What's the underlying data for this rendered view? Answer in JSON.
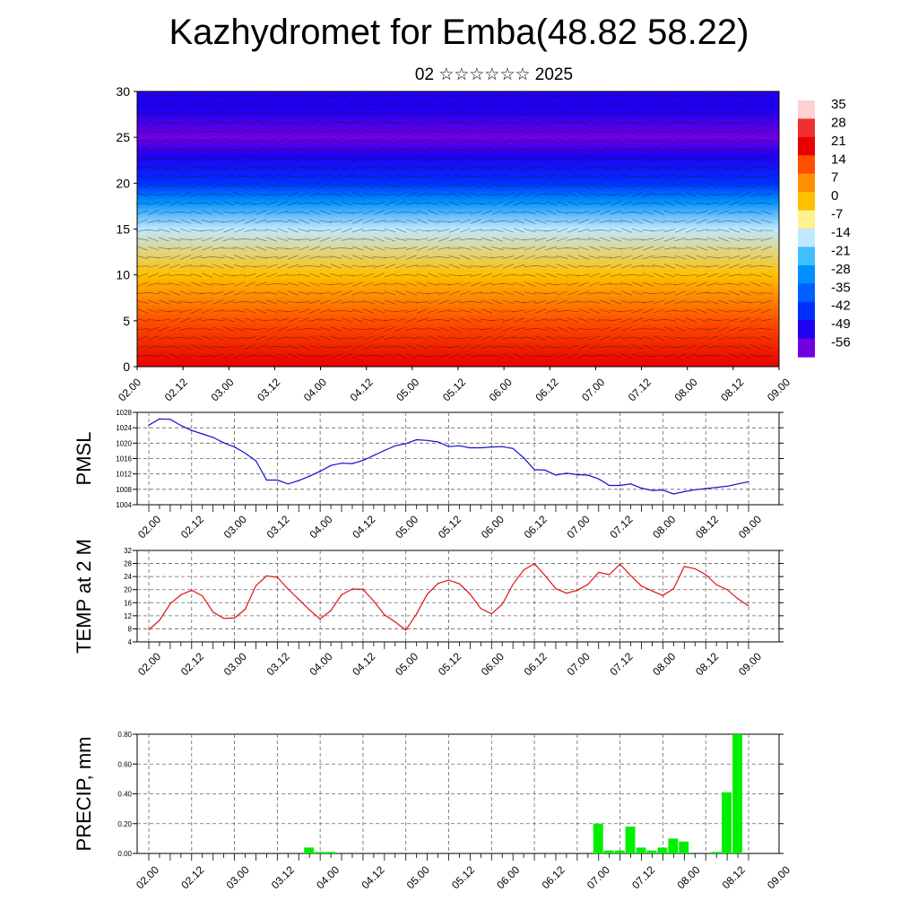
{
  "header": {
    "title": "Kazhydromet for Emba(48.82 58.22)",
    "subtitle": "02 ☆☆☆☆☆☆ 2025"
  },
  "x_tick_labels": [
    "02.00",
    "02.12",
    "03.00",
    "03.12",
    "04.00",
    "04.12",
    "05.00",
    "05.12",
    "06.00",
    "06.12",
    "07.00",
    "07.12",
    "08.00",
    "08.12",
    "09.00"
  ],
  "colors": {
    "pmsl_line": "#1010d0",
    "temp_line": "#e01010",
    "precip_bar": "#00ee00",
    "grid": "#666666"
  },
  "chart_data": [
    {
      "type": "heatmap",
      "name": "cross-section",
      "title": "",
      "xlabel": "",
      "ylabel": "",
      "ylim": [
        0,
        30
      ],
      "y_ticks": [
        0,
        5,
        10,
        15,
        20,
        25,
        30
      ],
      "colorbar": {
        "labels": [
          "35",
          "28",
          "21",
          "14",
          "7",
          "0",
          "-7",
          "-14",
          "-21",
          "-28",
          "-35",
          "-42",
          "-49",
          "-56"
        ],
        "colors": [
          "#ffd0d0",
          "#f03030",
          "#e80000",
          "#ff5000",
          "#ff9000",
          "#ffc000",
          "#fff090",
          "#c0e8ff",
          "#40c0ff",
          "#0090ff",
          "#0060ff",
          "#0030ff",
          "#2000f0",
          "#7000e0"
        ]
      },
      "temperature_profile": {
        "height": [
          0,
          5,
          10,
          15,
          18,
          20,
          23,
          25,
          28,
          30
        ],
        "value": [
          20,
          14,
          3,
          -12,
          -30,
          -42,
          -52,
          -56,
          -50,
          -46
        ]
      },
      "overlay": "wind barbs"
    },
    {
      "type": "line",
      "name": "PMSL",
      "ylabel": "PMSL",
      "ylim": [
        1004,
        1028
      ],
      "y_ticks": [
        1004,
        1008,
        1012,
        1016,
        1020,
        1024,
        1028
      ],
      "x": [
        0,
        1,
        2,
        3,
        4,
        5,
        6,
        7,
        8,
        9,
        10,
        11,
        12,
        13,
        14,
        15,
        16,
        17,
        18,
        19,
        20,
        21,
        22,
        23,
        24,
        25,
        26,
        27,
        28,
        29,
        30,
        31,
        32,
        33,
        34,
        35,
        36,
        37,
        38,
        39,
        40,
        41,
        42,
        43,
        44,
        45,
        46,
        47,
        48,
        49,
        50,
        51,
        52,
        53,
        54,
        55,
        56
      ],
      "values": [
        1024.7,
        1026.3,
        1026.2,
        1024.6,
        1023.3,
        1022.4,
        1021.5,
        1020.1,
        1019.0,
        1017.4,
        1015.4,
        1010.4,
        1010.4,
        1009.4,
        1010.3,
        1011.4,
        1012.7,
        1014.2,
        1014.8,
        1014.7,
        1015.5,
        1016.8,
        1018.1,
        1019.3,
        1019.9,
        1020.9,
        1020.7,
        1020.3,
        1019.1,
        1019.3,
        1018.8,
        1018.8,
        1019.0,
        1019.1,
        1018.6,
        1016.2,
        1013.1,
        1013.0,
        1011.7,
        1012.2,
        1011.8,
        1011.7,
        1010.7,
        1009.0,
        1009.0,
        1009.4,
        1008.3,
        1007.7,
        1007.8,
        1006.8,
        1007.4,
        1007.9,
        1008.2,
        1008.5,
        1008.8,
        1009.4,
        1010.0
      ]
    },
    {
      "type": "line",
      "name": "TEMP at 2 M",
      "ylabel": "TEMP at 2 M",
      "ylim": [
        4,
        32
      ],
      "y_ticks": [
        4,
        8,
        12,
        16,
        20,
        24,
        28,
        32
      ],
      "x": [
        0,
        1,
        2,
        3,
        4,
        5,
        6,
        7,
        8,
        9,
        10,
        11,
        12,
        13,
        14,
        15,
        16,
        17,
        18,
        19,
        20,
        21,
        22,
        23,
        24,
        25,
        26,
        27,
        28,
        29,
        30,
        31,
        32,
        33,
        34,
        35,
        36,
        37,
        38,
        39,
        40,
        41,
        42,
        43,
        44,
        45,
        46,
        47,
        48,
        49,
        50,
        51,
        52,
        53,
        54,
        55,
        56
      ],
      "values": [
        7.7,
        10.6,
        15.7,
        18.4,
        19.8,
        18.1,
        13.1,
        11.2,
        11.3,
        14.0,
        21.2,
        24.2,
        23.8,
        20.2,
        17.0,
        13.8,
        11.0,
        13.6,
        18.4,
        20.2,
        20.1,
        16.5,
        12.3,
        10.1,
        7.6,
        12.6,
        18.6,
        21.9,
        22.9,
        21.8,
        18.6,
        14.2,
        12.6,
        15.5,
        21.6,
        26.0,
        28.0,
        24.3,
        20.3,
        18.9,
        19.8,
        21.6,
        25.3,
        24.6,
        27.8,
        24.3,
        21.1,
        19.6,
        18.2,
        20.3,
        27.1,
        26.4,
        24.6,
        21.5,
        20.0,
        17.2,
        15.0
      ]
    },
    {
      "type": "bar",
      "name": "PRECIP, mm",
      "ylabel": "PRECIP, mm",
      "ylim": [
        0,
        0.8
      ],
      "y_ticks": [
        "0.00",
        "0.20",
        "0.40",
        "0.60",
        "0.80"
      ],
      "bars": [
        {
          "x": 15,
          "value": 0.04
        },
        {
          "x": 16,
          "value": 0.01
        },
        {
          "x": 17,
          "value": 0.01
        },
        {
          "x": 42,
          "value": 0.2
        },
        {
          "x": 43,
          "value": 0.02
        },
        {
          "x": 44,
          "value": 0.02
        },
        {
          "x": 45,
          "value": 0.18
        },
        {
          "x": 46,
          "value": 0.04
        },
        {
          "x": 47,
          "value": 0.02
        },
        {
          "x": 48,
          "value": 0.04
        },
        {
          "x": 49,
          "value": 0.1
        },
        {
          "x": 50,
          "value": 0.08
        },
        {
          "x": 53,
          "value": 0.01
        },
        {
          "x": 54,
          "value": 0.41
        },
        {
          "x": 55,
          "value": 0.8
        }
      ]
    }
  ]
}
